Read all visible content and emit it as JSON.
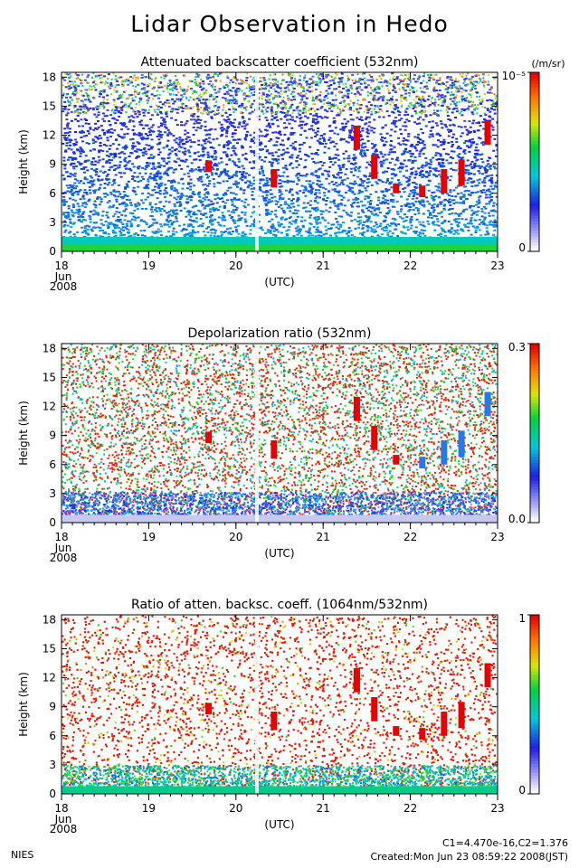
{
  "title": "Lidar Observation in Hedo",
  "footer": {
    "org": "NIES",
    "constants": "C1=4.470e-16,C2=1.376",
    "created": "Created:Mon Jun 23 08:59:22 2008(JST)"
  },
  "chart_data": [
    {
      "type": "heatmap",
      "title": "Attenuated backscatter coefficient (532nm)",
      "ylabel": "Height (km)",
      "xlabel": "(UTC)",
      "x_ticks": [
        "18",
        "19",
        "20",
        "21",
        "22",
        "23"
      ],
      "x_date_sub": [
        "Jun",
        "2008"
      ],
      "y_ticks": [
        "0",
        "3",
        "6",
        "9",
        "12",
        "15",
        "18"
      ],
      "ylim": [
        0,
        18.5
      ],
      "xlim": [
        18,
        23
      ],
      "colorbar": {
        "min_label": "0",
        "max_label": "10⁻⁵",
        "unit": "(/m/sr)"
      }
    },
    {
      "type": "heatmap",
      "title": "Depolarization ratio (532nm)",
      "ylabel": "Height (km)",
      "xlabel": "(UTC)",
      "x_ticks": [
        "18",
        "19",
        "20",
        "21",
        "22",
        "23"
      ],
      "x_date_sub": [
        "Jun",
        "2008"
      ],
      "y_ticks": [
        "0",
        "3",
        "6",
        "9",
        "12",
        "15",
        "18"
      ],
      "ylim": [
        0,
        18.5
      ],
      "xlim": [
        18,
        23
      ],
      "colorbar": {
        "min_label": "0.0",
        "max_label": "0.3",
        "unit": ""
      }
    },
    {
      "type": "heatmap",
      "title": "Ratio of atten. backsc. coeff. (1064nm/532nm)",
      "ylabel": "Height (km)",
      "xlabel": "(UTC)",
      "x_ticks": [
        "18",
        "19",
        "20",
        "21",
        "22",
        "23"
      ],
      "x_date_sub": [
        "Jun",
        "2008"
      ],
      "y_ticks": [
        "0",
        "3",
        "6",
        "9",
        "12",
        "15",
        "18"
      ],
      "ylim": [
        0,
        18.5
      ],
      "xlim": [
        18,
        23
      ],
      "colorbar": {
        "min_label": "0",
        "max_label": "1",
        "unit": ""
      }
    }
  ]
}
